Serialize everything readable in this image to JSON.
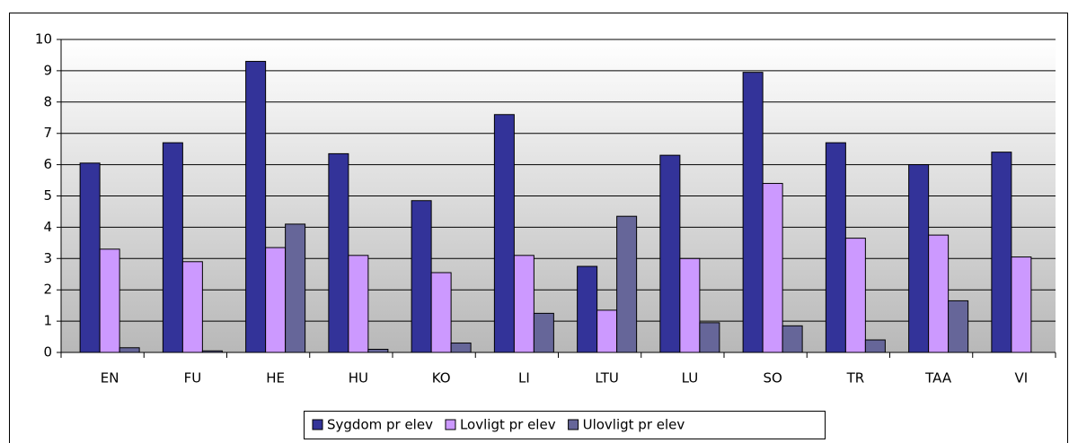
{
  "chart_data": {
    "type": "bar",
    "categories": [
      "EN",
      "FU",
      "HE",
      "HU",
      "KO",
      "LI",
      "LTU",
      "LU",
      "SO",
      "TR",
      "TAA",
      "VI"
    ],
    "series": [
      {
        "name": "Sygdom pr elev",
        "color": "#333399",
        "values": [
          6.05,
          6.7,
          9.3,
          6.35,
          4.85,
          7.6,
          2.75,
          6.3,
          8.95,
          6.7,
          6.0,
          6.4
        ]
      },
      {
        "name": "Lovligt pr elev",
        "color": "#cc99ff",
        "values": [
          3.3,
          2.9,
          3.35,
          3.1,
          2.55,
          3.1,
          1.35,
          3.0,
          5.4,
          3.65,
          3.75,
          3.05
        ]
      },
      {
        "name": "Ulovligt pr elev",
        "color": "#666699",
        "values": [
          0.15,
          0.05,
          4.1,
          0.1,
          0.3,
          1.25,
          4.35,
          0.95,
          0.85,
          0.4,
          1.65,
          0
        ]
      }
    ],
    "ylim": [
      0,
      10
    ],
    "yticks": [
      0,
      1,
      2,
      3,
      4,
      5,
      6,
      7,
      8,
      9,
      10
    ],
    "grid": true,
    "legend": "bottom"
  }
}
